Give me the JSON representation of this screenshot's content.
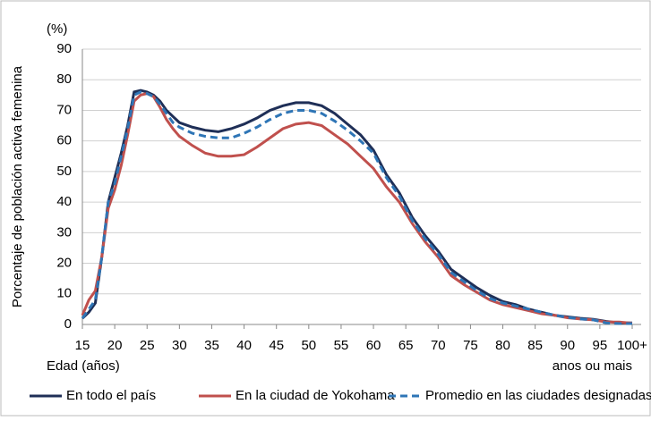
{
  "chart_data": {
    "type": "line",
    "y_unit_label": "(%)",
    "y_label": "Porcentaje de población activa femenina",
    "x_label": "Edad (años)",
    "x_end_note": "anos ou mais",
    "x": [
      15,
      16,
      17,
      18,
      19,
      20,
      21,
      22,
      23,
      24,
      25,
      26,
      27,
      28,
      29,
      30,
      32,
      34,
      36,
      38,
      40,
      42,
      44,
      46,
      48,
      50,
      52,
      54,
      56,
      58,
      60,
      62,
      64,
      66,
      68,
      70,
      72,
      74,
      76,
      78,
      80,
      82,
      84,
      86,
      88,
      90,
      92,
      94,
      96,
      98,
      100
    ],
    "series": [
      {
        "name": "En todo el país",
        "color": "#1f2f57",
        "line_style": "solid",
        "values": [
          2,
          4,
          7,
          22,
          40,
          48,
          56,
          65,
          76,
          76.5,
          76,
          75,
          73,
          70,
          68,
          66,
          64.5,
          63.5,
          63,
          64,
          65.5,
          67.5,
          70,
          71.5,
          72.5,
          72.5,
          71.5,
          69,
          65.5,
          62,
          57,
          49,
          43,
          35,
          29,
          24,
          18,
          15,
          12,
          9.5,
          7.5,
          6.5,
          5,
          4,
          3,
          2.5,
          2,
          1.7,
          1,
          0.5,
          0.5
        ]
      },
      {
        "name": "En la ciudad de Yokohama",
        "color": "#c0504d",
        "line_style": "solid",
        "values": [
          3,
          8,
          11,
          22,
          38,
          44,
          52,
          62,
          73,
          75,
          75.5,
          74.5,
          71,
          67,
          64,
          61.5,
          58.5,
          56,
          55,
          55,
          55.5,
          58,
          61,
          64,
          65.5,
          66,
          65,
          62,
          59,
          55,
          51,
          45,
          40,
          33,
          27,
          22,
          16,
          13,
          10.5,
          8,
          6.5,
          5.5,
          4.5,
          3.5,
          3,
          2.2,
          1.8,
          1.5,
          0.8,
          0.8,
          0.4
        ]
      },
      {
        "name": "Promedio en las ciudades designadas",
        "color": "#2e75b6",
        "line_style": "dashed",
        "values": [
          2,
          5,
          8,
          22,
          40,
          46,
          55,
          64,
          75,
          76,
          75.5,
          74.5,
          72,
          69,
          66,
          64.5,
          62.5,
          61.5,
          61,
          61,
          62.5,
          64.5,
          67,
          69,
          70,
          70,
          69,
          66.5,
          63.5,
          60,
          56,
          48,
          42,
          34,
          28,
          23,
          17,
          14,
          11,
          8.5,
          7,
          6,
          5,
          4,
          3,
          2.3,
          1.8,
          1.5,
          0.5,
          0.3,
          0.3
        ]
      }
    ],
    "xlim": [
      15,
      100
    ],
    "xticks": [
      15,
      20,
      25,
      30,
      35,
      40,
      45,
      50,
      55,
      60,
      65,
      70,
      75,
      80,
      85,
      90,
      95,
      {
        "value": 100,
        "label": "100+"
      }
    ],
    "ylim": [
      0,
      90
    ],
    "yticks": [
      0,
      10,
      20,
      30,
      40,
      50,
      60,
      70,
      80,
      90
    ],
    "grid": true,
    "legend": "bottom"
  }
}
